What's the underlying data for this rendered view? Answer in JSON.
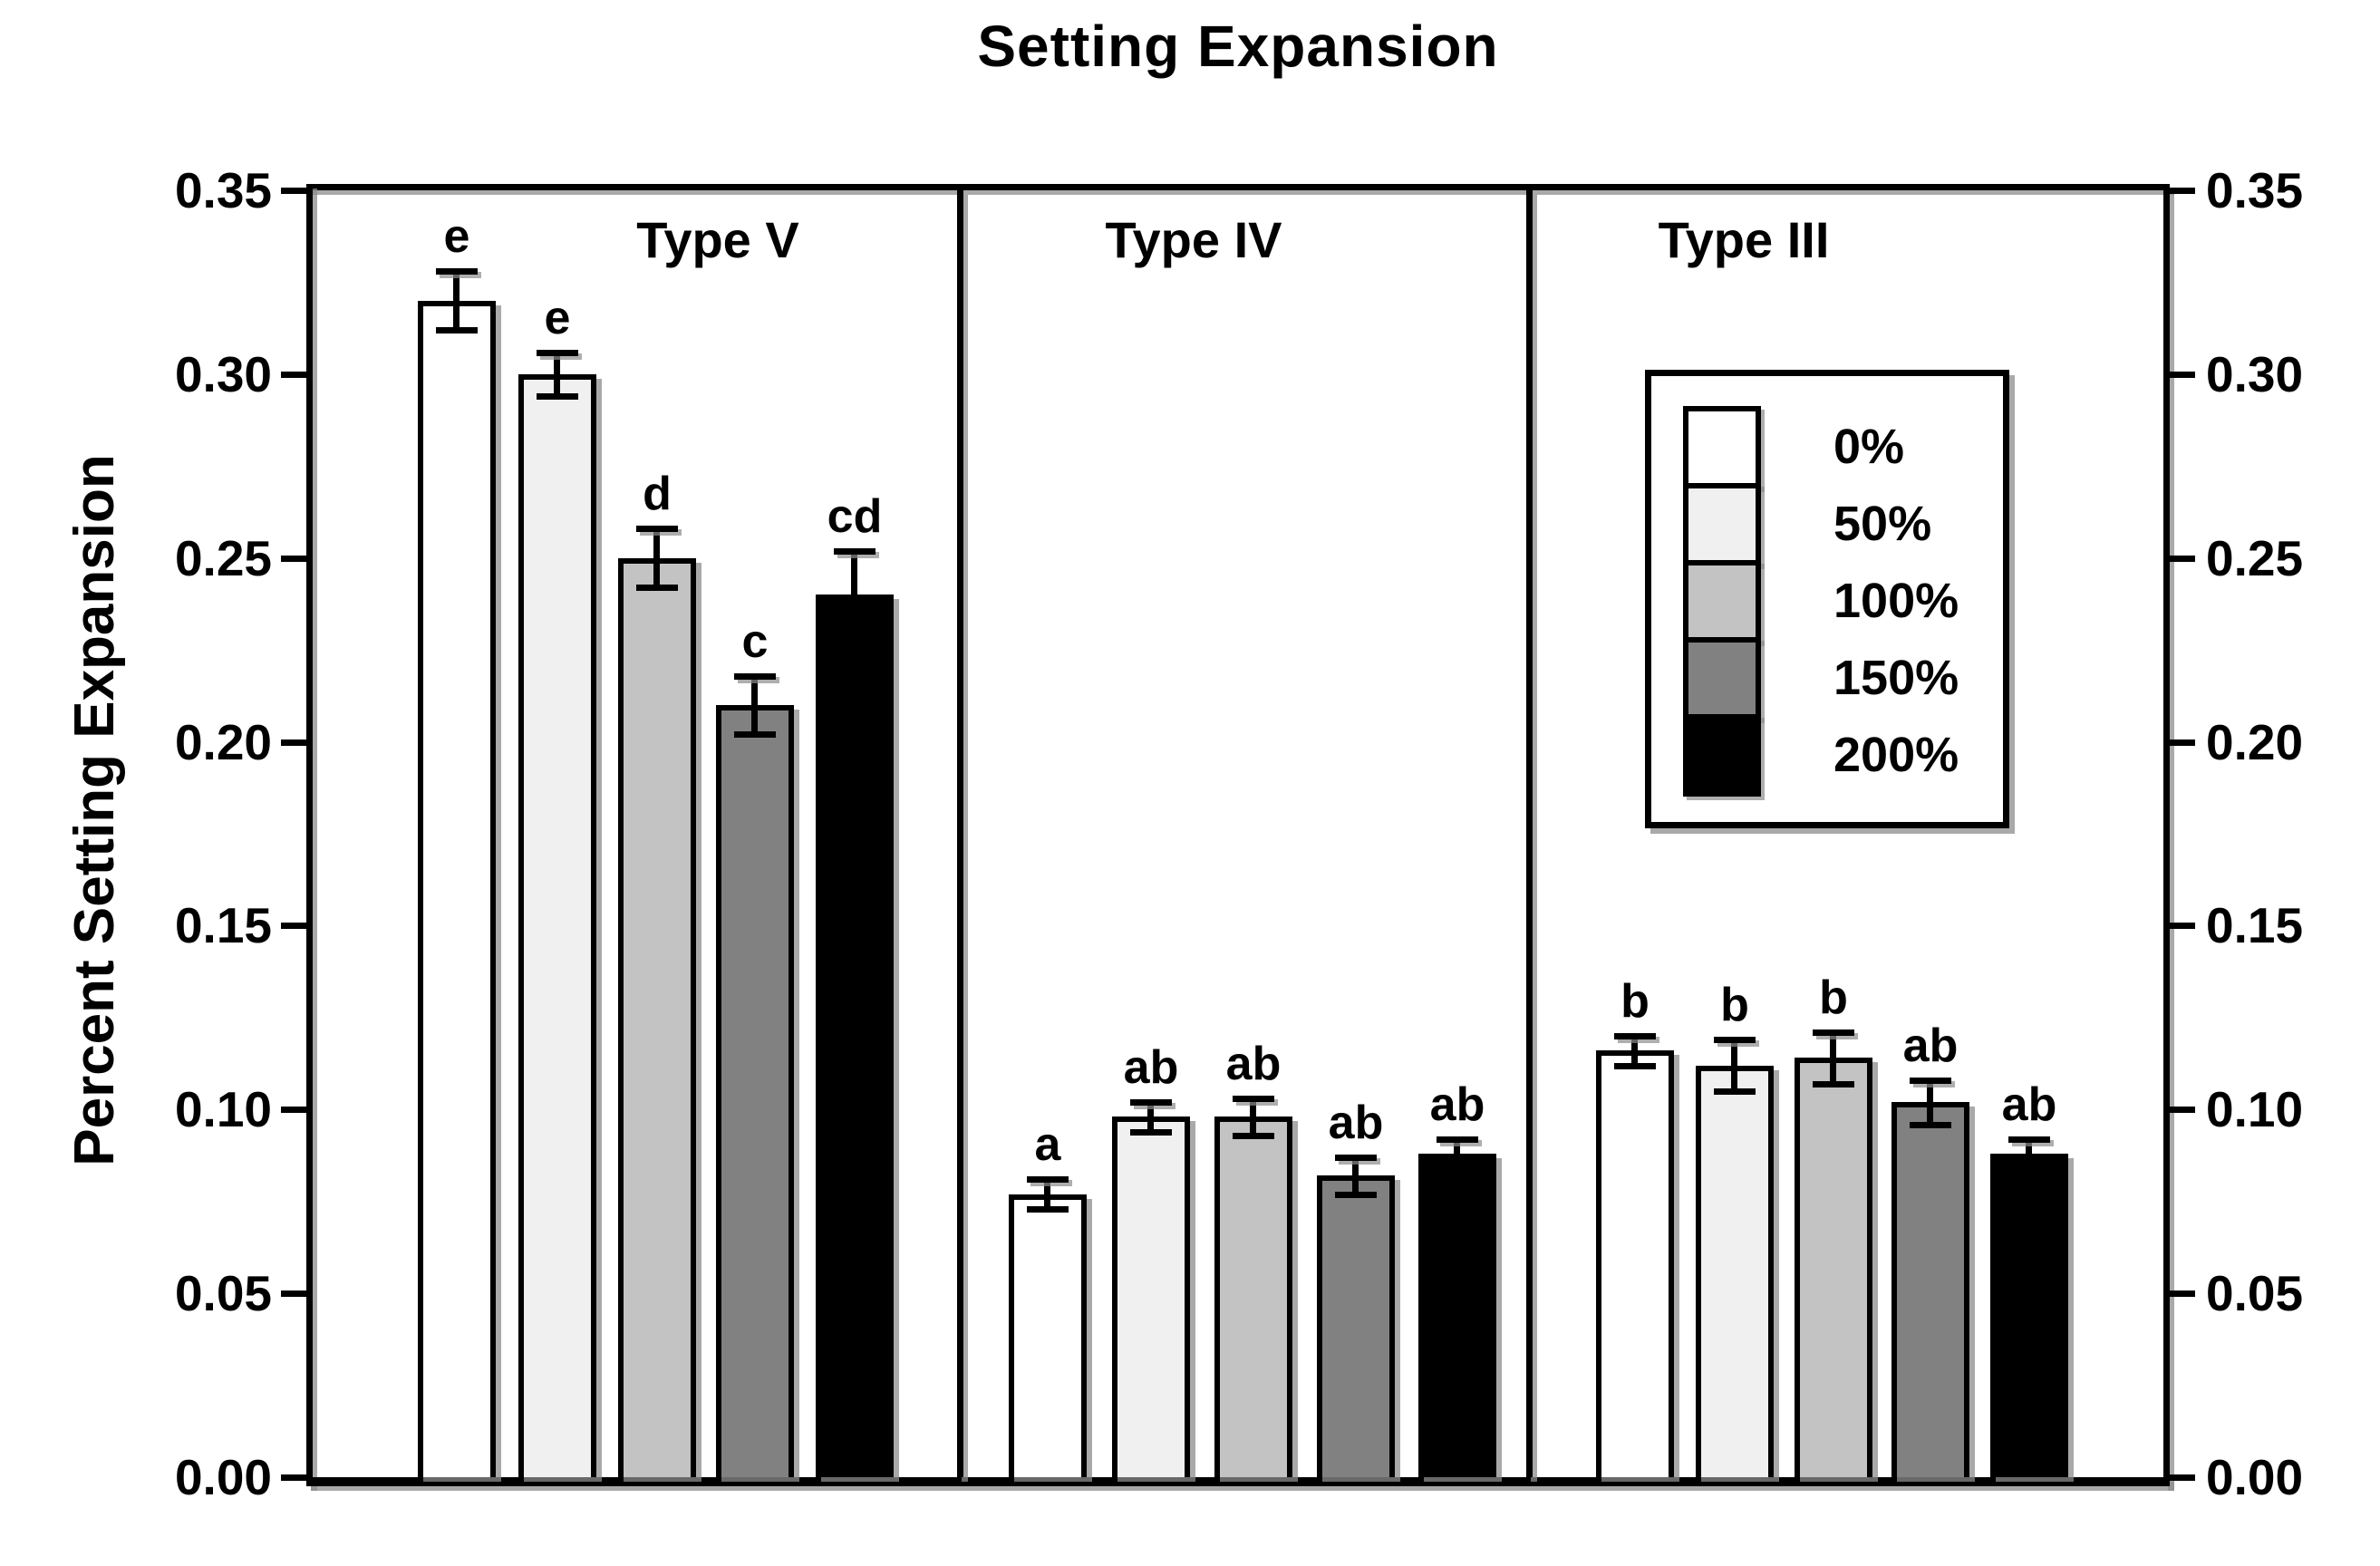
{
  "title": "Setting Expansion",
  "y_axis": {
    "label": "Percent Setting Expansion",
    "ticks": [
      "0.35",
      "0.30",
      "0.25",
      "0.20",
      "0.15",
      "0.10",
      "0.05",
      "0.00"
    ]
  },
  "legend": {
    "items": [
      {
        "label": "0%",
        "color": "#ffffff"
      },
      {
        "label": "50%",
        "color": "#f0f0f0"
      },
      {
        "label": "100%",
        "color": "#c3c3c3"
      },
      {
        "label": "150%",
        "color": "#818181"
      },
      {
        "label": "200%",
        "color": "#000000"
      }
    ]
  },
  "chart_data": {
    "type": "bar",
    "title": "Setting Expansion",
    "ylabel": "Percent Setting Expansion",
    "ylim": [
      0,
      0.35
    ],
    "ytick_interval": 0.05,
    "grid": false,
    "legend_position": "inside Type III panel, upper area",
    "categories": [
      "0%",
      "50%",
      "100%",
      "150%",
      "200%"
    ],
    "panels": [
      {
        "label": "Type V",
        "bars": [
          {
            "group": "0%",
            "value": 0.32,
            "error": 0.008,
            "sig": "e"
          },
          {
            "group": "50%",
            "value": 0.3,
            "error": 0.006,
            "sig": "e"
          },
          {
            "group": "100%",
            "value": 0.25,
            "error": 0.008,
            "sig": "d"
          },
          {
            "group": "150%",
            "value": 0.21,
            "error": 0.008,
            "sig": "c"
          },
          {
            "group": "200%",
            "value": 0.24,
            "error": 0.012,
            "sig": "cd"
          }
        ]
      },
      {
        "label": "Type IV",
        "bars": [
          {
            "group": "0%",
            "value": 0.077,
            "error": 0.004,
            "sig": "a"
          },
          {
            "group": "50%",
            "value": 0.098,
            "error": 0.004,
            "sig": "ab"
          },
          {
            "group": "100%",
            "value": 0.098,
            "error": 0.005,
            "sig": "ab"
          },
          {
            "group": "150%",
            "value": 0.082,
            "error": 0.005,
            "sig": "ab"
          },
          {
            "group": "200%",
            "value": 0.088,
            "error": 0.004,
            "sig": "ab"
          }
        ]
      },
      {
        "label": "Type III",
        "bars": [
          {
            "group": "0%",
            "value": 0.116,
            "error": 0.004,
            "sig": "b"
          },
          {
            "group": "50%",
            "value": 0.112,
            "error": 0.007,
            "sig": "b"
          },
          {
            "group": "100%",
            "value": 0.114,
            "error": 0.007,
            "sig": "b"
          },
          {
            "group": "150%",
            "value": 0.102,
            "error": 0.006,
            "sig": "ab"
          },
          {
            "group": "200%",
            "value": 0.088,
            "error": 0.004,
            "sig": "ab"
          }
        ]
      }
    ]
  }
}
